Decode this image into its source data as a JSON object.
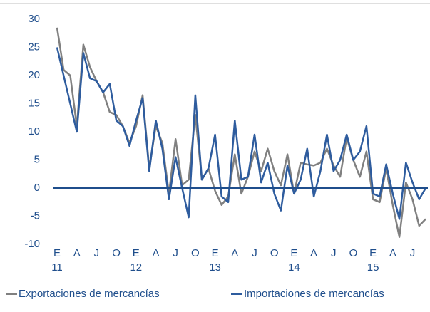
{
  "chart_data": {
    "type": "line",
    "categories": [
      "E",
      null,
      null,
      "A",
      null,
      null,
      "J",
      null,
      null,
      "O",
      null,
      null,
      "E",
      null,
      null,
      "A",
      null,
      null,
      "J",
      null,
      null,
      "O",
      null,
      null,
      "E",
      null,
      null,
      "A",
      null,
      null,
      "J",
      null,
      null,
      "O",
      null,
      null,
      "E",
      null,
      null,
      "A",
      null,
      null,
      "J",
      null,
      null,
      "O",
      null,
      null,
      "E",
      null,
      null,
      "A",
      null,
      null,
      "J",
      null,
      null
    ],
    "category_years": [
      "11",
      null,
      null,
      null,
      null,
      null,
      null,
      null,
      null,
      null,
      null,
      null,
      "12",
      null,
      null,
      null,
      null,
      null,
      null,
      null,
      null,
      null,
      null,
      null,
      "13",
      null,
      null,
      null,
      null,
      null,
      null,
      null,
      null,
      null,
      null,
      null,
      "14",
      null,
      null,
      null,
      null,
      null,
      null,
      null,
      null,
      null,
      null,
      null,
      "15",
      null,
      null,
      null,
      null,
      null,
      null,
      null,
      null
    ],
    "series": [
      {
        "name": "Exportaciones de mercancías",
        "color": "#808080",
        "values": [
          28.5,
          21,
          20,
          11,
          25.5,
          21.5,
          19,
          17,
          13.5,
          13,
          11,
          8,
          11,
          16.5,
          3.5,
          11,
          8,
          -1,
          8.7,
          0.5,
          1.5,
          13,
          1.5,
          3.5,
          -0.5,
          -3,
          -1.5,
          6,
          -1,
          2,
          6.5,
          3,
          7,
          3,
          0.5,
          6,
          -1,
          4.5,
          4.2,
          4,
          4.5,
          7,
          4,
          2,
          9,
          5,
          2,
          6.5,
          -2,
          -2.5,
          3.5,
          -3,
          -8.7,
          1,
          -2,
          -6.7,
          -5.5
        ]
      },
      {
        "name": "Importaciones de mercancías",
        "color": "#2e5c9e",
        "values": [
          25,
          20,
          15,
          10,
          24,
          19.5,
          19,
          17,
          18.5,
          12,
          11,
          7.5,
          12,
          16,
          3,
          12,
          7,
          -2,
          5.5,
          0,
          -5.2,
          16.5,
          1.5,
          3.5,
          9.5,
          -1.5,
          -2.5,
          12,
          1.5,
          2,
          9.5,
          1,
          4.5,
          -1,
          -4,
          4,
          -1,
          1.5,
          7,
          -1.5,
          3,
          9.5,
          3,
          5,
          9.5,
          5,
          6.5,
          11,
          -1,
          -1.5,
          4.2,
          -1,
          -5.5,
          4.5,
          1,
          -2,
          0
        ]
      }
    ],
    "ylim": [
      -10,
      30
    ],
    "yticks": [
      -10,
      -5,
      0,
      5,
      10,
      15,
      20,
      25,
      30
    ],
    "zero_line_color": "#1f4e8c",
    "legend": "bottom"
  }
}
